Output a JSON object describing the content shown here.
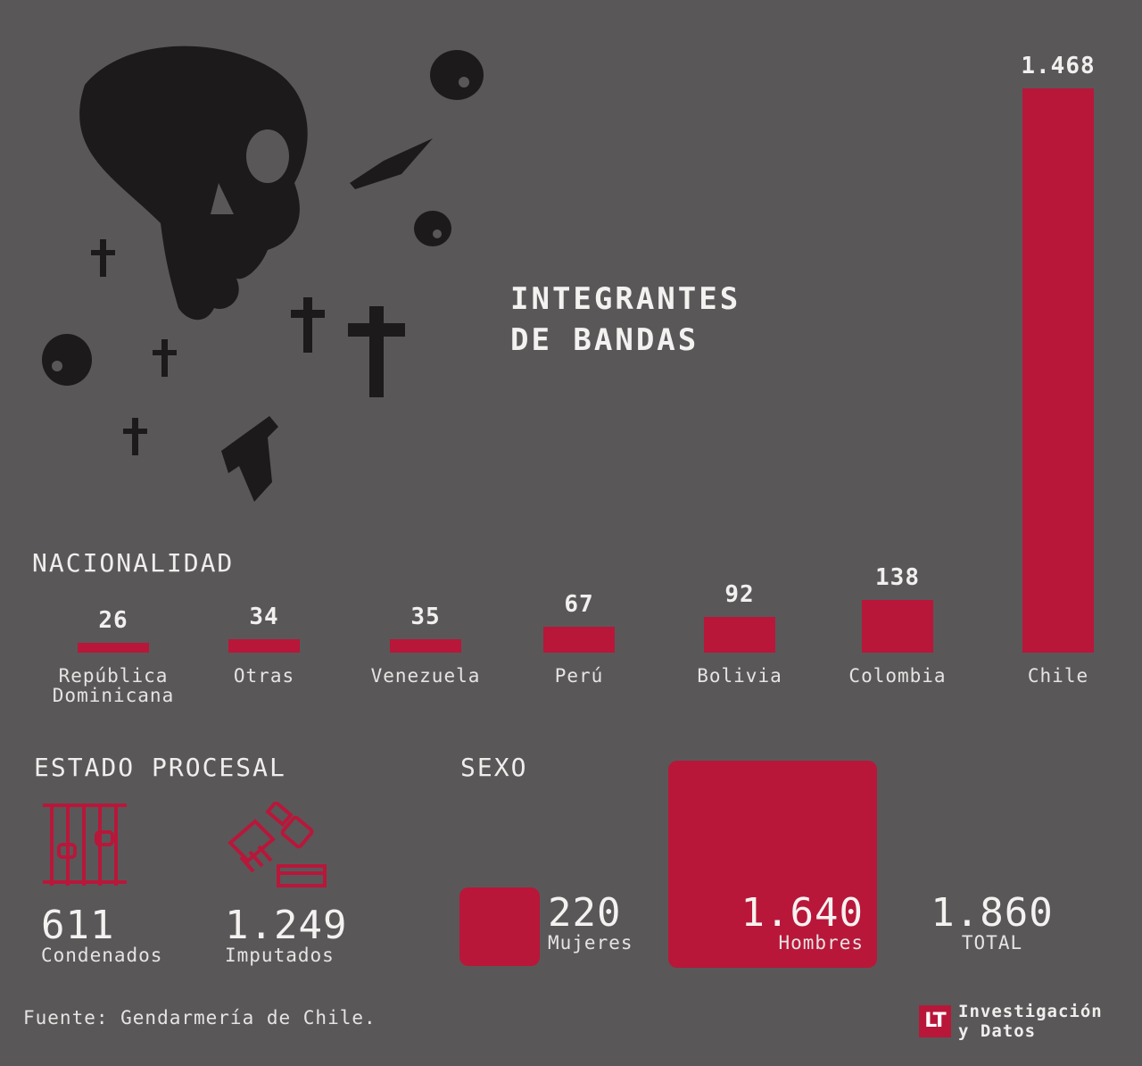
{
  "title_lines": [
    "INTEGRANTES",
    "DE BANDAS"
  ],
  "nacionalidad": {
    "section_title": "NACIONALIDAD"
  },
  "chart_data": {
    "type": "bar",
    "categories": [
      [
        "República",
        "Dominicana"
      ],
      [
        "Otras"
      ],
      [
        "Venezuela"
      ],
      [
        "Perú"
      ],
      [
        "Bolivia"
      ],
      [
        "Colombia"
      ],
      [
        "Chile"
      ]
    ],
    "values": [
      26,
      34,
      35,
      67,
      92,
      138,
      1468
    ],
    "value_labels": [
      "26",
      "34",
      "35",
      "67",
      "92",
      "138",
      "1.468"
    ],
    "ylim": [
      0,
      1468
    ],
    "grid": false,
    "colors": {
      "bar": "#b8173a"
    }
  },
  "estado_procesal": {
    "section_title": "ESTADO PROCESAL",
    "items": [
      {
        "value": "611",
        "label": "Condenados",
        "icon": "prison-bars-icon"
      },
      {
        "value": "1.249",
        "label": "Imputados",
        "icon": "handcuffs-icon"
      }
    ]
  },
  "sexo": {
    "section_title": "SEXO",
    "mujeres": {
      "value": "220",
      "label": "Mujeres"
    },
    "hombres": {
      "value": "1.640",
      "label": "Hombres"
    },
    "total": {
      "value": "1.860",
      "label": "TOTAL"
    }
  },
  "source": "Fuente: Gendarmería de Chile.",
  "logo": {
    "mark": "LT",
    "lines": [
      "Investigación",
      "y Datos"
    ]
  },
  "colors": {
    "background": "#5a5759",
    "accent": "#b8173a",
    "illustration": "#1c1a1b"
  },
  "illustration": [
    "skull-icon",
    "knife-icon",
    "cross-icon",
    "pistol-icon"
  ]
}
